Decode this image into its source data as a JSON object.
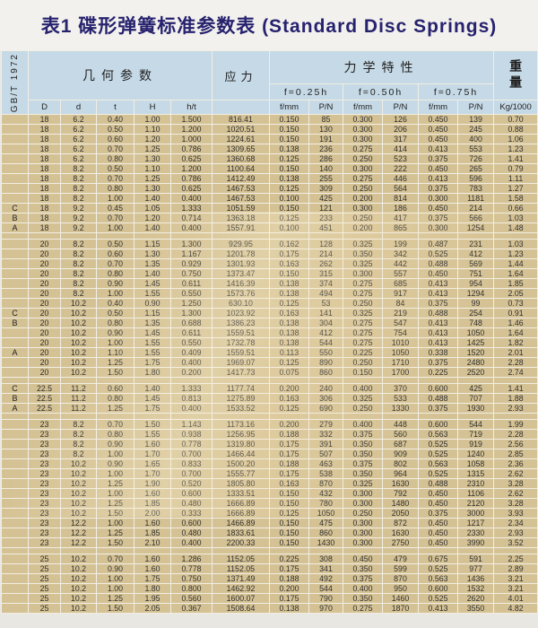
{
  "title": "表1 碟形弹簧标准参数表 (Standard Disc Springs)",
  "standard_label": "GB/T 1972",
  "table": {
    "group_headers": {
      "geometry": "几何参数",
      "stress": "应力",
      "mechanical": "力学特性",
      "weight": "重量",
      "deflection_levels": [
        "f=0.25h",
        "f=0.50h",
        "f=0.75h"
      ]
    },
    "stress_symbol": "σ",
    "stress_subscript": "OM",
    "column_headers": [
      "D",
      "d",
      "t",
      "H",
      "h/t",
      "f/mm",
      "P/N",
      "f/mm",
      "P/N",
      "f/mm",
      "P/N",
      "Kg/1000"
    ],
    "blocks": [
      {
        "rows": [
          {
            "g": "",
            "v": [
              "18",
              "6.2",
              "0.40",
              "1.00",
              "1.500",
              "816.41",
              "0.150",
              "85",
              "0.300",
              "126",
              "0.450",
              "139",
              "0.70"
            ]
          },
          {
            "g": "",
            "v": [
              "18",
              "6.2",
              "0.50",
              "1.10",
              "1.200",
              "1020.51",
              "0.150",
              "130",
              "0.300",
              "206",
              "0.450",
              "245",
              "0.88"
            ]
          },
          {
            "g": "",
            "v": [
              "18",
              "6.2",
              "0.60",
              "1.20",
              "1.000",
              "1224.61",
              "0.150",
              "191",
              "0.300",
              "317",
              "0.450",
              "400",
              "1.06"
            ]
          },
          {
            "g": "",
            "v": [
              "18",
              "6.2",
              "0.70",
              "1.25",
              "0.786",
              "1309.65",
              "0.138",
              "236",
              "0.275",
              "414",
              "0.413",
              "553",
              "1.23"
            ]
          },
          {
            "g": "",
            "v": [
              "18",
              "6.2",
              "0.80",
              "1.30",
              "0.625",
              "1360.68",
              "0.125",
              "286",
              "0.250",
              "523",
              "0.375",
              "726",
              "1.41"
            ]
          },
          {
            "g": "",
            "v": [
              "18",
              "8.2",
              "0.50",
              "1.10",
              "1.200",
              "1100.64",
              "0.150",
              "140",
              "0.300",
              "222",
              "0.450",
              "265",
              "0.79"
            ]
          },
          {
            "g": "",
            "v": [
              "18",
              "8.2",
              "0.70",
              "1.25",
              "0.786",
              "1412.49",
              "0.138",
              "255",
              "0.275",
              "446",
              "0.413",
              "596",
              "1.11"
            ]
          },
          {
            "g": "",
            "v": [
              "18",
              "8.2",
              "0.80",
              "1.30",
              "0.625",
              "1467.53",
              "0.125",
              "309",
              "0.250",
              "564",
              "0.375",
              "783",
              "1.27"
            ]
          },
          {
            "g": "",
            "v": [
              "18",
              "8.2",
              "1.00",
              "1.40",
              "0.400",
              "1467.53",
              "0.100",
              "425",
              "0.200",
              "814",
              "0.300",
              "1181",
              "1.58"
            ]
          },
          {
            "g": "C",
            "v": [
              "18",
              "9.2",
              "0.45",
              "1.05",
              "1.333",
              "1051.59",
              "0.150",
              "121",
              "0.300",
              "186",
              "0.450",
              "214",
              "0.66"
            ]
          },
          {
            "g": "B",
            "v": [
              "18",
              "9.2",
              "0.70",
              "1.20",
              "0.714",
              "1363.18",
              "0.125",
              "233",
              "0.250",
              "417",
              "0.375",
              "566",
              "1.03"
            ]
          },
          {
            "g": "A",
            "v": [
              "18",
              "9.2",
              "1.00",
              "1.40",
              "0.400",
              "1557.91",
              "0.100",
              "451",
              "0.200",
              "865",
              "0.300",
              "1254",
              "1.48"
            ]
          }
        ]
      },
      {
        "rows": [
          {
            "g": "",
            "v": [
              "20",
              "8.2",
              "0.50",
              "1.15",
              "1.300",
              "929.95",
              "0.162",
              "128",
              "0.325",
              "199",
              "0.487",
              "231",
              "1.03"
            ]
          },
          {
            "g": "",
            "v": [
              "20",
              "8.2",
              "0.60",
              "1.30",
              "1.167",
              "1201.78",
              "0.175",
              "214",
              "0.350",
              "342",
              "0.525",
              "412",
              "1.23"
            ]
          },
          {
            "g": "",
            "v": [
              "20",
              "8.2",
              "0.70",
              "1.35",
              "0.929",
              "1301.93",
              "0.163",
              "262",
              "0.325",
              "442",
              "0.488",
              "569",
              "1.44"
            ]
          },
          {
            "g": "",
            "v": [
              "20",
              "8.2",
              "0.80",
              "1.40",
              "0.750",
              "1373.47",
              "0.150",
              "315",
              "0.300",
              "557",
              "0.450",
              "751",
              "1.64"
            ]
          },
          {
            "g": "",
            "v": [
              "20",
              "8.2",
              "0.90",
              "1.45",
              "0.611",
              "1416.39",
              "0.138",
              "374",
              "0.275",
              "685",
              "0.413",
              "954",
              "1.85"
            ]
          },
          {
            "g": "",
            "v": [
              "20",
              "8.2",
              "1.00",
              "1.55",
              "0.550",
              "1573.76",
              "0.138",
              "494",
              "0.275",
              "917",
              "0.413",
              "1294",
              "2.05"
            ]
          },
          {
            "g": "",
            "v": [
              "20",
              "10.2",
              "0.40",
              "0.90",
              "1.250",
              "630.10",
              "0.125",
              "53",
              "0.250",
              "84",
              "0.375",
              "99",
              "0.73"
            ]
          },
          {
            "g": "C",
            "v": [
              "20",
              "10.2",
              "0.50",
              "1.15",
              "1.300",
              "1023.92",
              "0.163",
              "141",
              "0.325",
              "219",
              "0.488",
              "254",
              "0.91"
            ]
          },
          {
            "g": "B",
            "v": [
              "20",
              "10.2",
              "0.80",
              "1.35",
              "0.688",
              "1386.23",
              "0.138",
              "304",
              "0.275",
              "547",
              "0.413",
              "748",
              "1.46"
            ]
          },
          {
            "g": "",
            "v": [
              "20",
              "10.2",
              "0.90",
              "1.45",
              "0.611",
              "1559.51",
              "0.138",
              "412",
              "0.275",
              "754",
              "0.413",
              "1050",
              "1.64"
            ]
          },
          {
            "g": "",
            "v": [
              "20",
              "10.2",
              "1.00",
              "1.55",
              "0.550",
              "1732.78",
              "0.138",
              "544",
              "0.275",
              "1010",
              "0.413",
              "1425",
              "1.82"
            ]
          },
          {
            "g": "A",
            "v": [
              "20",
              "10.2",
              "1.10",
              "1.55",
              "0.409",
              "1559.51",
              "0.113",
              "550",
              "0.225",
              "1050",
              "0.338",
              "1520",
              "2.01"
            ]
          },
          {
            "g": "",
            "v": [
              "20",
              "10.2",
              "1.25",
              "1.75",
              "0.400",
              "1969.07",
              "0.125",
              "890",
              "0.250",
              "1710",
              "0.375",
              "2480",
              "2.28"
            ]
          },
          {
            "g": "",
            "v": [
              "20",
              "10.2",
              "1.50",
              "1.80",
              "0.200",
              "1417.73",
              "0.075",
              "860",
              "0.150",
              "1700",
              "0.225",
              "2520",
              "2.74"
            ]
          }
        ]
      },
      {
        "rows": [
          {
            "g": "C",
            "v": [
              "22.5",
              "11.2",
              "0.60",
              "1.40",
              "1.333",
              "1177.74",
              "0.200",
              "240",
              "0.400",
              "370",
              "0.600",
              "425",
              "1.41"
            ]
          },
          {
            "g": "B",
            "v": [
              "22.5",
              "11.2",
              "0.80",
              "1.45",
              "0.813",
              "1275.89",
              "0.163",
              "306",
              "0.325",
              "533",
              "0.488",
              "707",
              "1.88"
            ]
          },
          {
            "g": "A",
            "v": [
              "22.5",
              "11.2",
              "1.25",
              "1.75",
              "0.400",
              "1533.52",
              "0.125",
              "690",
              "0.250",
              "1330",
              "0.375",
              "1930",
              "2.93"
            ]
          }
        ]
      },
      {
        "rows": [
          {
            "g": "",
            "v": [
              "23",
              "8.2",
              "0.70",
              "1.50",
              "1.143",
              "1173.16",
              "0.200",
              "279",
              "0.400",
              "448",
              "0.600",
              "544",
              "1.99"
            ]
          },
          {
            "g": "",
            "v": [
              "23",
              "8.2",
              "0.80",
              "1.55",
              "0.938",
              "1256.95",
              "0.188",
              "332",
              "0.375",
              "560",
              "0.563",
              "719",
              "2.28"
            ]
          },
          {
            "g": "",
            "v": [
              "23",
              "8.2",
              "0.90",
              "1.60",
              "0.778",
              "1319.80",
              "0.175",
              "391",
              "0.350",
              "687",
              "0.525",
              "919",
              "2.56"
            ]
          },
          {
            "g": "",
            "v": [
              "23",
              "8.2",
              "1.00",
              "1.70",
              "0.700",
              "1466.44",
              "0.175",
              "507",
              "0.350",
              "909",
              "0.525",
              "1240",
              "2.85"
            ]
          },
          {
            "g": "",
            "v": [
              "23",
              "10.2",
              "0.90",
              "1.65",
              "0.833",
              "1500.20",
              "0.188",
              "463",
              "0.375",
              "802",
              "0.563",
              "1058",
              "2.36"
            ]
          },
          {
            "g": "",
            "v": [
              "23",
              "10.2",
              "1.00",
              "1.70",
              "0.700",
              "1555.77",
              "0.175",
              "538",
              "0.350",
              "964",
              "0.525",
              "1315",
              "2.62"
            ]
          },
          {
            "g": "",
            "v": [
              "23",
              "10.2",
              "1.25",
              "1.90",
              "0.520",
              "1805.80",
              "0.163",
              "870",
              "0.325",
              "1630",
              "0.488",
              "2310",
              "3.28"
            ]
          },
          {
            "g": "",
            "v": [
              "23",
              "10.2",
              "1.00",
              "1.60",
              "0.600",
              "1333.51",
              "0.150",
              "432",
              "0.300",
              "792",
              "0.450",
              "1106",
              "2.62"
            ]
          },
          {
            "g": "",
            "v": [
              "23",
              "10.2",
              "1.25",
              "1.85",
              "0.480",
              "1666.89",
              "0.150",
              "780",
              "0.300",
              "1480",
              "0.450",
              "2120",
              "3.28"
            ]
          },
          {
            "g": "",
            "v": [
              "23",
              "10.2",
              "1.50",
              "2.00",
              "0.333",
              "1666.89",
              "0.125",
              "1050",
              "0.250",
              "2050",
              "0.375",
              "3000",
              "3.93"
            ]
          },
          {
            "g": "",
            "v": [
              "23",
              "12.2",
              "1.00",
              "1.60",
              "0.600",
              "1466.89",
              "0.150",
              "475",
              "0.300",
              "872",
              "0.450",
              "1217",
              "2.34"
            ]
          },
          {
            "g": "",
            "v": [
              "23",
              "12.2",
              "1.25",
              "1.85",
              "0.480",
              "1833.61",
              "0.150",
              "860",
              "0.300",
              "1630",
              "0.450",
              "2330",
              "2.93"
            ]
          },
          {
            "g": "",
            "v": [
              "23",
              "12.2",
              "1.50",
              "2.10",
              "0.400",
              "2200.33",
              "0.150",
              "1430",
              "0.300",
              "2750",
              "0.450",
              "3990",
              "3.52"
            ]
          }
        ]
      },
      {
        "rows": [
          {
            "g": "",
            "v": [
              "25",
              "10.2",
              "0.70",
              "1.60",
              "1.286",
              "1152.05",
              "0.225",
              "308",
              "0.450",
              "479",
              "0.675",
              "591",
              "2.25"
            ]
          },
          {
            "g": "",
            "v": [
              "25",
              "10.2",
              "0.90",
              "1.60",
              "0.778",
              "1152.05",
              "0.175",
              "341",
              "0.350",
              "599",
              "0.525",
              "977",
              "2.89"
            ]
          },
          {
            "g": "",
            "v": [
              "25",
              "10.2",
              "1.00",
              "1.75",
              "0.750",
              "1371.49",
              "0.188",
              "492",
              "0.375",
              "870",
              "0.563",
              "1436",
              "3.21"
            ]
          },
          {
            "g": "",
            "v": [
              "25",
              "10.2",
              "1.00",
              "1.80",
              "0.800",
              "1462.92",
              "0.200",
              "544",
              "0.400",
              "950",
              "0.600",
              "1532",
              "3.21"
            ]
          },
          {
            "g": "",
            "v": [
              "25",
              "10.2",
              "1.25",
              "1.95",
              "0.560",
              "1600.07",
              "0.175",
              "790",
              "0.350",
              "1460",
              "0.525",
              "2620",
              "4.01"
            ]
          },
          {
            "g": "",
            "v": [
              "25",
              "10.2",
              "1.50",
              "2.05",
              "0.367",
              "1508.64",
              "0.138",
              "970",
              "0.275",
              "1870",
              "0.413",
              "3550",
              "4.82"
            ]
          }
        ]
      }
    ]
  },
  "colors": {
    "header_bg": "#c6d9e6",
    "row_bg": "#d5c294",
    "grid_line": "#f1eee4",
    "title_text": "#26226e"
  }
}
